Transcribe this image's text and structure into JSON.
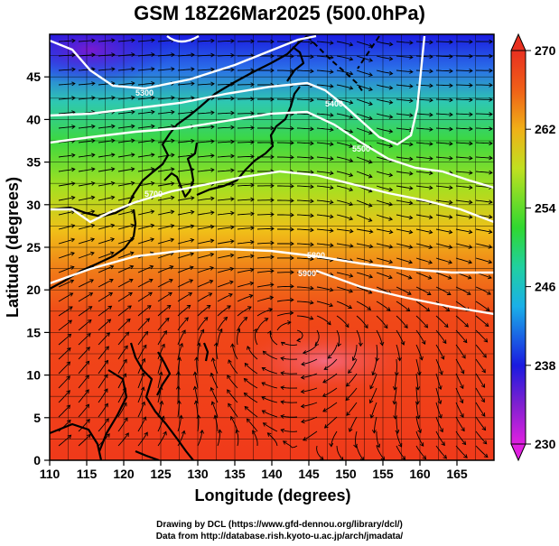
{
  "title": "GSM 18Z26Mar2025 (500.0hPa)",
  "xlabel": "Longitude (degrees)",
  "ylabel": "Latitude  (degrees)",
  "credit_line1": "Drawing by DCL (https://www.gfd-dennou.org/library/dcl/)",
  "credit_line2": "Data from http://database.rish.kyoto-u.ac.jp/arch/jmadata/",
  "x_ticks": [
    "110",
    "115",
    "120",
    "125",
    "130",
    "135",
    "140",
    "145",
    "150",
    "155",
    "160",
    "165"
  ],
  "y_ticks": [
    "0",
    "5",
    "10",
    "15",
    "20",
    "25",
    "30",
    "35",
    "40",
    "45"
  ],
  "colorbar_ticks": [
    "230",
    "238",
    "246",
    "254",
    "262",
    "270"
  ],
  "contour_labels": [
    "5300",
    "5400",
    "5500",
    "5700",
    "5800",
    "5900"
  ],
  "colors": {
    "cbar_low": "#e020e0",
    "cbar_high": "#e83020",
    "contour": "#ffffff",
    "coast": "#000000",
    "streamline": "#000000"
  },
  "chart_data": {
    "type": "heatmap",
    "variable": "temperature",
    "x_range": [
      110,
      170
    ],
    "y_range": [
      0,
      50
    ],
    "colorbar_range": [
      230,
      270
    ],
    "overlays": [
      "streamlines",
      "geopotential-height contours",
      "coastlines",
      "lat-lon grid"
    ]
  }
}
